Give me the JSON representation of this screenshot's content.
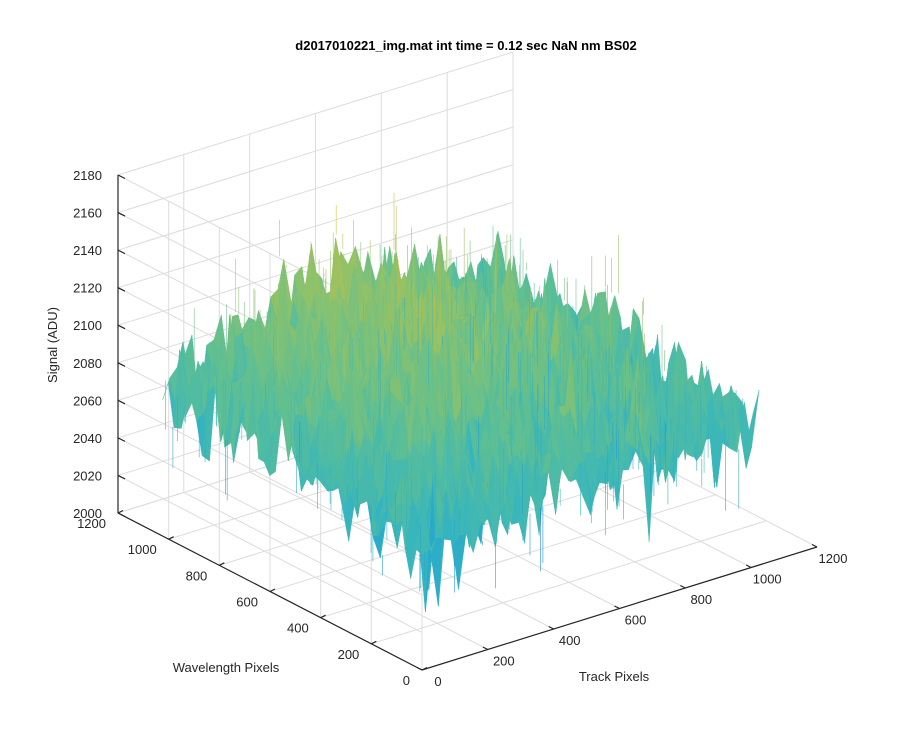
{
  "chart_data": {
    "type": "surface3d",
    "title": "d2017010221_img.mat int time = 0.12 sec  NaN nm BS02",
    "xlabel": "Track Pixels",
    "ylabel": "Wavelength Pixels",
    "zlabel": "Signal (ADU)",
    "xlim": [
      0,
      1200
    ],
    "ylim": [
      0,
      1200
    ],
    "zlim": [
      2000,
      2180
    ],
    "x_ticks": [
      "0",
      "200",
      "400",
      "600",
      "800",
      "1000",
      "1200"
    ],
    "y_ticks": [
      "0",
      "200",
      "400",
      "600",
      "800",
      "1000",
      "1200"
    ],
    "z_ticks": [
      "2000",
      "2020",
      "2040",
      "2060",
      "2080",
      "2100",
      "2120",
      "2140",
      "2160",
      "2180"
    ],
    "data_extent": {
      "x": [
        0,
        1024
      ],
      "y": [
        0,
        1024
      ]
    },
    "signal_range": [
      2010,
      2170
    ],
    "baseline_signal": 2070,
    "peak_signal": 2110,
    "grid": true,
    "colormap": [
      "#0072d6",
      "#1c9ad8",
      "#35b5c0",
      "#5fbf92",
      "#94c266",
      "#d2bb3a",
      "#f5bb28"
    ]
  }
}
